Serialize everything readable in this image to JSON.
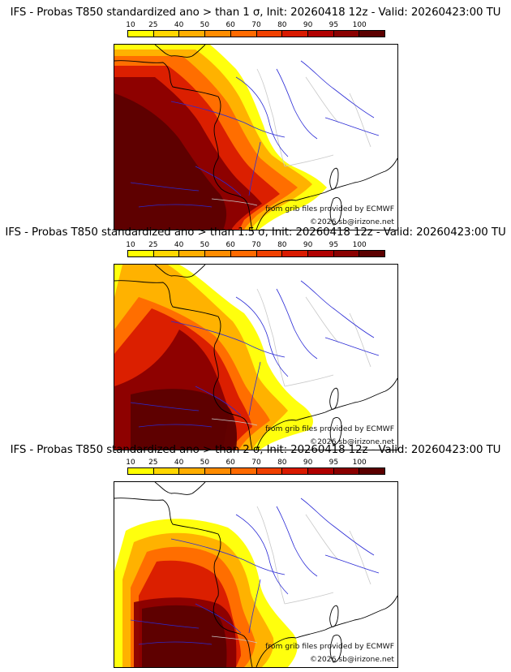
{
  "palette": {
    "ocean_bg": "#ffffff",
    "coast": "#000000",
    "rivers": "#2b2bd6",
    "borders_light": "#c8c8c8",
    "levels": [
      "#ffff00",
      "#ffd700",
      "#ffae00",
      "#ff8c00",
      "#ff6a00",
      "#f04000",
      "#d91a00",
      "#b00000",
      "#8a0000",
      "#5c0000"
    ]
  },
  "colorbar": {
    "ticks": [
      "10",
      "25",
      "40",
      "50",
      "60",
      "70",
      "80",
      "90",
      "95",
      "100"
    ]
  },
  "panels": [
    {
      "title": "IFS - Probas T850  standardized ano > than 1 σ, Init: 20260418 12z - Valid: 20260423:00 TU",
      "threshold_sigma": 1,
      "source": "from grib files provided by ECMWF",
      "copyright": "©2026 sb@irizone.net"
    },
    {
      "title": "IFS - Probas T850  standardized ano > than 1.5 σ, Init: 20260418 12z - Valid: 20260423:00 TU",
      "threshold_sigma": 1.5,
      "source": "from grib files provided by ECMWF",
      "copyright": "©2026 sb@irizone.net"
    },
    {
      "title": "IFS - Probas T850  standardized ano > than 2 σ, Init: 20260418 12z - Valid: 20260423:00 TU",
      "threshold_sigma": 2,
      "source": "from grib files provided by ECMWF",
      "copyright": "©2026 sb@irizone.net"
    }
  ]
}
